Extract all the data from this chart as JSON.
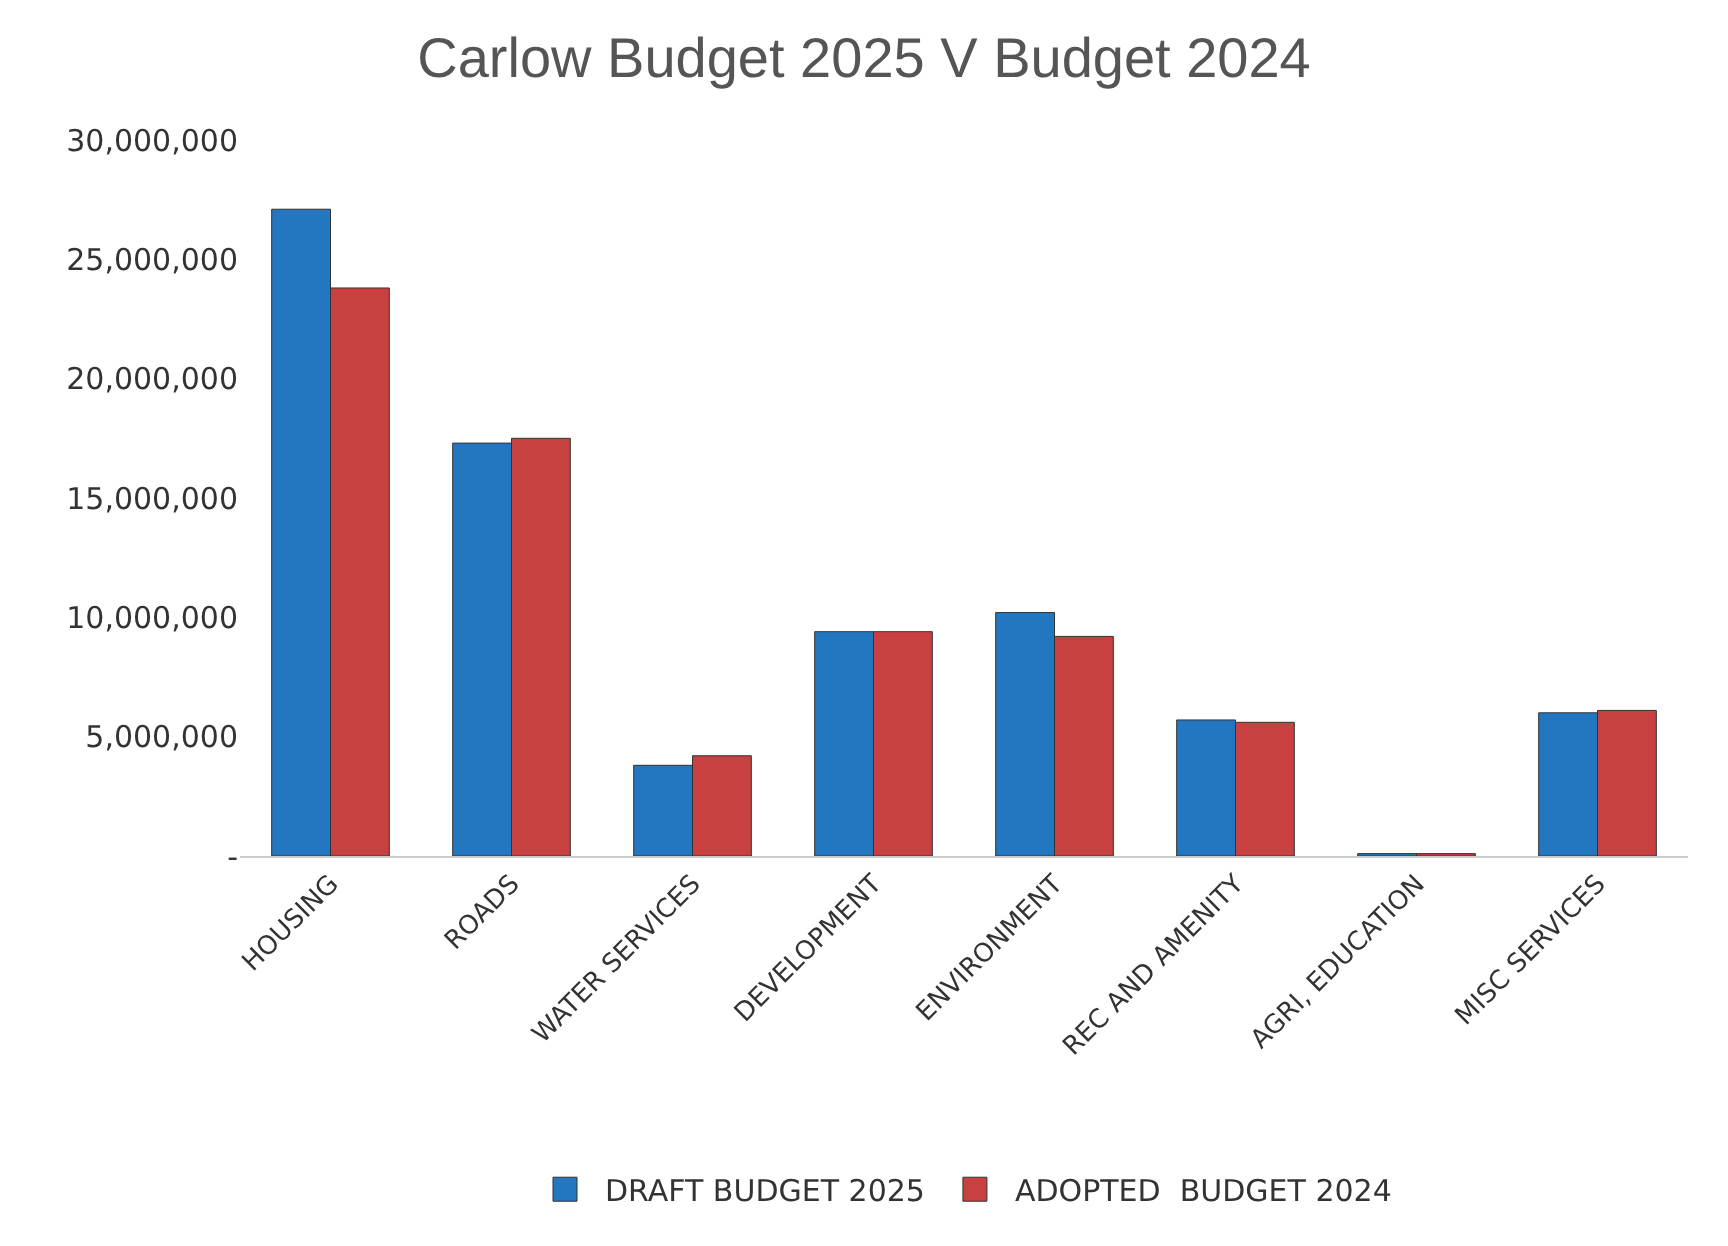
{
  "chart_data": {
    "type": "bar",
    "title": "Carlow Budget 2025 V Budget 2024",
    "categories": [
      "HOUSING",
      "ROADS",
      "WATER SERVICES",
      "DEVELOPMENT",
      "ENVIRONMENT",
      "REC AND AMENITY",
      "AGRI, EDUCATION",
      "MISC SERVICES"
    ],
    "series": [
      {
        "name": "DRAFT BUDGET 2025",
        "color": "#2277c0",
        "values": [
          27100000,
          17300000,
          3800000,
          9400000,
          10200000,
          5700000,
          100000,
          6000000
        ]
      },
      {
        "name": "ADOPTED  BUDGET 2024",
        "color": "#c94040",
        "values": [
          23800000,
          17500000,
          4200000,
          9400000,
          9200000,
          5600000,
          100000,
          6100000
        ]
      }
    ],
    "ylim": [
      0,
      30000000
    ],
    "yticks": [
      {
        "value": 0,
        "label": "-"
      },
      {
        "value": 5000000,
        "label": "5,000,000"
      },
      {
        "value": 10000000,
        "label": "10,000,000"
      },
      {
        "value": 15000000,
        "label": "15,000,000"
      },
      {
        "value": 20000000,
        "label": "20,000,000"
      },
      {
        "value": 25000000,
        "label": "25,000,000"
      },
      {
        "value": 30000000,
        "label": "30,000,000"
      }
    ],
    "grid": false,
    "legend": "bottom"
  }
}
